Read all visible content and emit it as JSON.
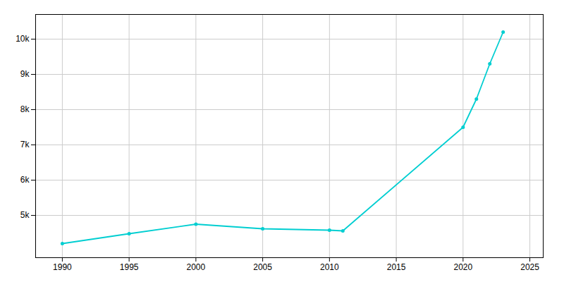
{
  "chart_data": {
    "type": "line",
    "x": [
      1990,
      1995,
      2000,
      2005,
      2010,
      2011,
      2020,
      2021,
      2022,
      2023
    ],
    "values": [
      4200,
      4480,
      4750,
      4620,
      4580,
      4560,
      7500,
      8300,
      9300,
      10200
    ],
    "color": "#00CED1",
    "marker": "circle",
    "xlim": [
      1988,
      2026
    ],
    "ylim": [
      3800,
      10700
    ],
    "xticks": [
      1990,
      1995,
      2000,
      2005,
      2010,
      2015,
      2020,
      2025
    ],
    "yticks": [
      {
        "value": 5000,
        "label": "5k"
      },
      {
        "value": 6000,
        "label": "6k"
      },
      {
        "value": 7000,
        "label": "7k"
      },
      {
        "value": 8000,
        "label": "8k"
      },
      {
        "value": 9000,
        "label": "9k"
      },
      {
        "value": 10000,
        "label": "10k"
      }
    ],
    "grid": true
  }
}
